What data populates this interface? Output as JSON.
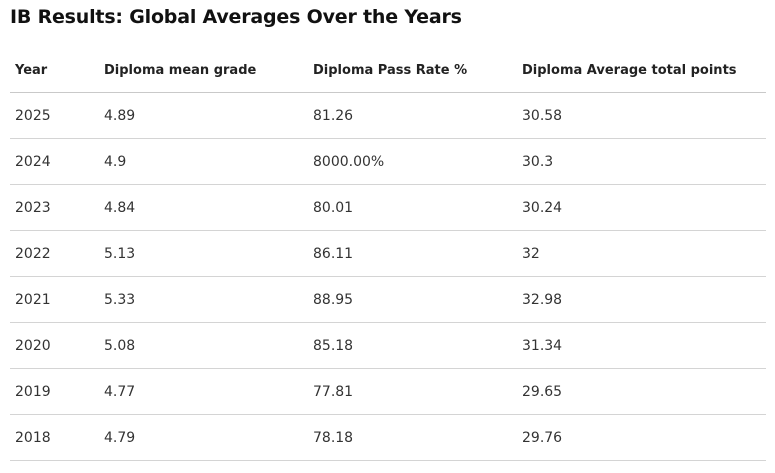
{
  "page_title": "IB Results: Global Averages Over the Years",
  "table": {
    "headers": {
      "year": "Year",
      "mean_grade": "Diploma mean grade",
      "pass_rate": "Diploma Pass Rate %",
      "total_points": "Diploma Average total points"
    },
    "rows": [
      {
        "year": "2025",
        "mean_grade": "4.89",
        "pass_rate": "81.26",
        "total_points": "30.58"
      },
      {
        "year": "2024",
        "mean_grade": "4.9",
        "pass_rate": "8000.00%",
        "total_points": "30.3"
      },
      {
        "year": "2023",
        "mean_grade": "4.84",
        "pass_rate": "80.01",
        "total_points": "30.24"
      },
      {
        "year": "2022",
        "mean_grade": "5.13",
        "pass_rate": "86.11",
        "total_points": "32"
      },
      {
        "year": "2021",
        "mean_grade": "5.33",
        "pass_rate": "88.95",
        "total_points": "32.98"
      },
      {
        "year": "2020",
        "mean_grade": "5.08",
        "pass_rate": "85.18",
        "total_points": "31.34"
      },
      {
        "year": "2019",
        "mean_grade": "4.77",
        "pass_rate": "77.81",
        "total_points": "29.65"
      },
      {
        "year": "2018",
        "mean_grade": "4.79",
        "pass_rate": "78.18",
        "total_points": "29.76"
      }
    ]
  }
}
